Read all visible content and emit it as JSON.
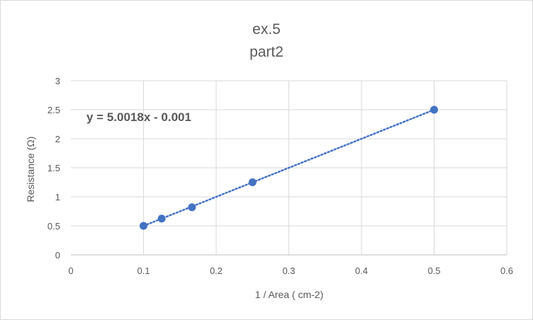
{
  "chart_data": {
    "type": "scatter",
    "title": [
      "ex.5",
      "part2"
    ],
    "xlabel": "1 / Area ( cm-2)",
    "ylabel": "Resistance (Ω)",
    "xlim": [
      0,
      0.6
    ],
    "ylim": [
      0,
      3
    ],
    "x_ticks": [
      "0",
      "0.1",
      "0.2",
      "0.3",
      "0.4",
      "0.5",
      "0.6"
    ],
    "y_ticks": [
      "0",
      "0.5",
      "1",
      "1.5",
      "2",
      "2.5",
      "3"
    ],
    "grid": true,
    "series": [
      {
        "points": [
          {
            "x": 0.1,
            "y": 0.5
          },
          {
            "x": 0.125,
            "y": 0.625
          },
          {
            "x": 0.1667,
            "y": 0.82
          },
          {
            "x": 0.25,
            "y": 1.25
          },
          {
            "x": 0.5,
            "y": 2.5
          }
        ],
        "color": "#4472c4"
      }
    ],
    "trendline": {
      "type": "linear",
      "slope": 5.0018,
      "intercept": -0.001,
      "x_range": [
        0.1,
        0.5
      ],
      "style": "dotted",
      "color": "#4472c4",
      "equation": "y = 5.0018x - 0.001"
    }
  }
}
